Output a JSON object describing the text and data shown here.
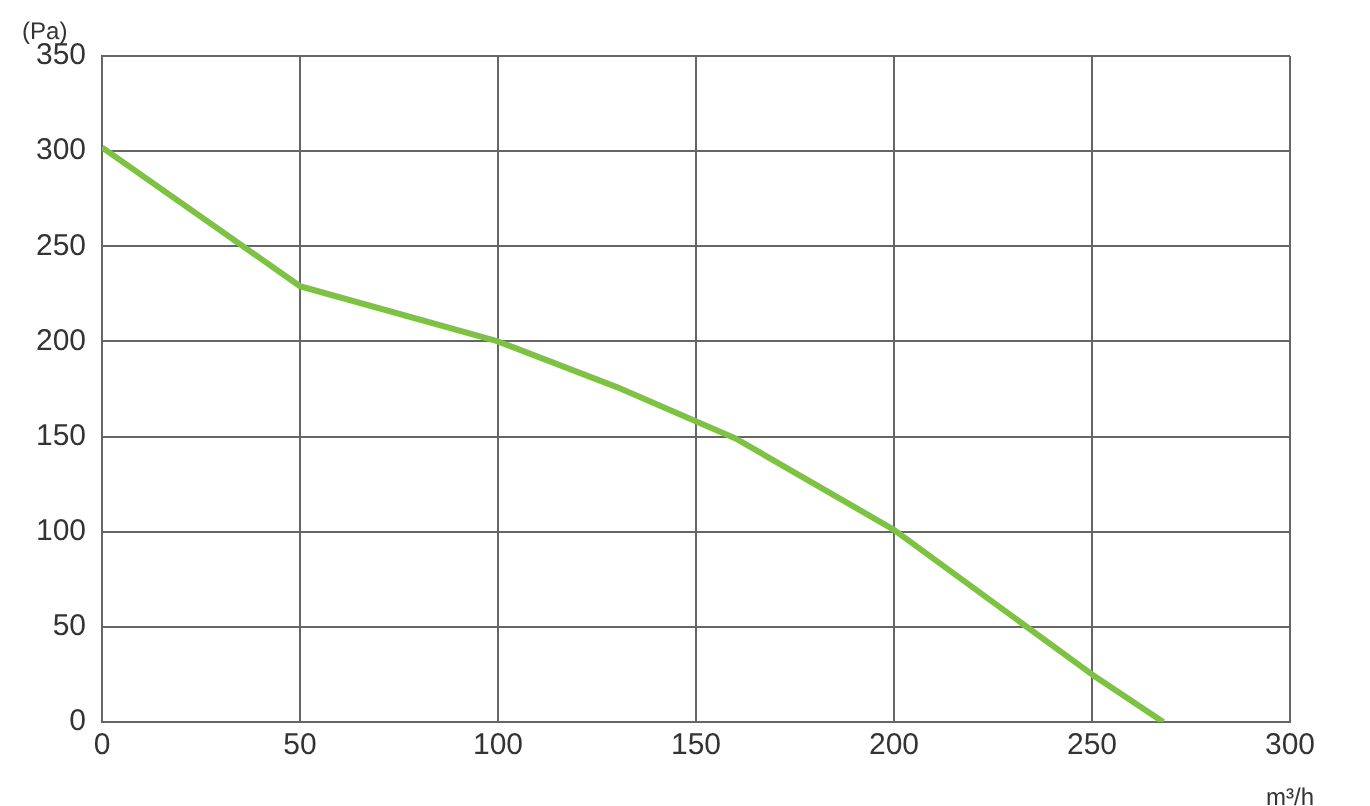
{
  "chart_data": {
    "type": "line",
    "xlabel": "m³/h",
    "ylabel": "(Pa)",
    "x": [
      0,
      50,
      100,
      130,
      160,
      200,
      250,
      268
    ],
    "series": [
      {
        "color": "#7dc242",
        "values": [
          302,
          229,
          200,
          176,
          149,
          101,
          25,
          0
        ]
      }
    ],
    "xlim": [
      0,
      300
    ],
    "xticks": [
      0,
      50,
      100,
      150,
      200,
      250,
      300
    ],
    "ylim": [
      0,
      350
    ],
    "yticks": [
      0,
      50,
      100,
      150,
      200,
      250,
      300,
      350
    ],
    "grid": true,
    "legend": false,
    "marker": "none",
    "line_style": "solid"
  }
}
